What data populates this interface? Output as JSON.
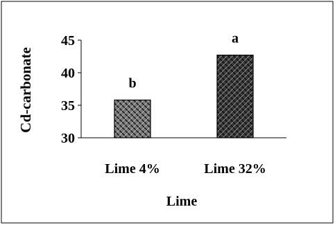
{
  "chart_data": {
    "type": "bar",
    "categories": [
      "Lime 4%",
      "Lime 32%"
    ],
    "values": [
      35.8,
      42.7
    ],
    "data_labels": [
      "b",
      "a"
    ],
    "xlabel": "Lime",
    "ylabel": "Cd-carbonate",
    "ylim": [
      30,
      45
    ],
    "yticks": [
      "30",
      "35",
      "40",
      "45"
    ],
    "grid": false,
    "legend": "none",
    "bar_fill_colors": [
      "#4a4a4a",
      "#2b2b2b"
    ],
    "bar_pattern": "basket-weave hatch"
  }
}
